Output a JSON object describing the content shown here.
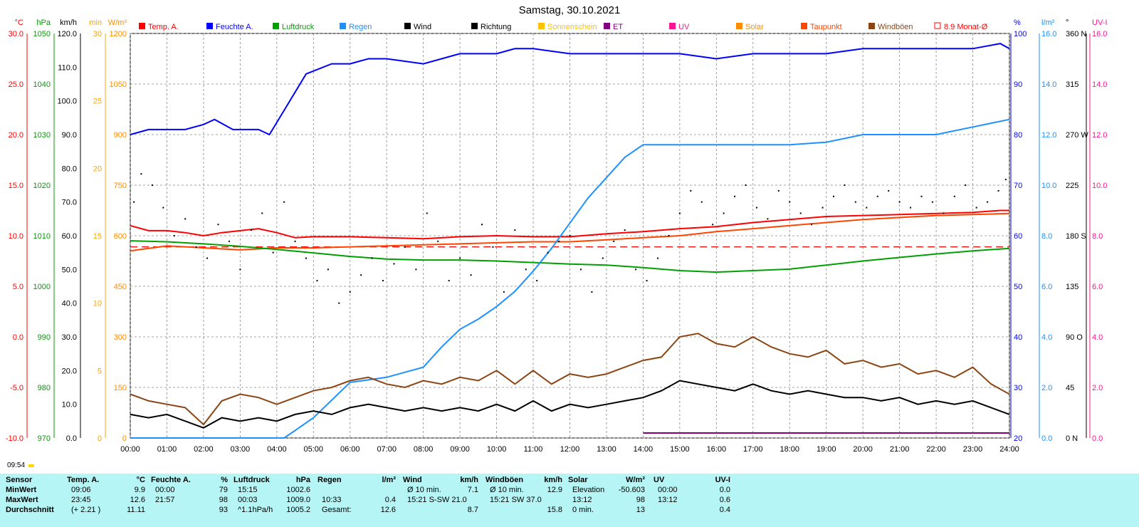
{
  "title": "Samstag, 30.10.2021",
  "sunrise_label": "09:54",
  "legend": [
    {
      "label": "Temp. A.",
      "color": "#ff0000",
      "marker": "box"
    },
    {
      "label": "Feuchte A.",
      "color": "#0000ff",
      "marker": "box"
    },
    {
      "label": "Luftdruck",
      "color": "#00a000",
      "marker": "box"
    },
    {
      "label": "Regen",
      "color": "#1e90ff",
      "marker": "box"
    },
    {
      "label": "Wind",
      "color": "#000000",
      "marker": "box"
    },
    {
      "label": "Richtung",
      "color": "#000000",
      "marker": "box"
    },
    {
      "label": "Sonnenschein",
      "color": "#ffc000",
      "marker": "box"
    },
    {
      "label": "ET",
      "color": "#800080",
      "marker": "box"
    },
    {
      "label": "UV",
      "color": "#ff1493",
      "marker": "box"
    },
    {
      "label": "Solar",
      "color": "#ff8c00",
      "marker": "box"
    },
    {
      "label": "Taupunkt",
      "color": "#ff4500",
      "marker": "box"
    },
    {
      "label": "Windböen",
      "color": "#8b4513",
      "marker": "box"
    },
    {
      "label": "8.9 Monat-Ø",
      "color": "#ff0000",
      "marker": "outline"
    }
  ],
  "left_axes": {
    "temp": {
      "unit": "°C",
      "color": "#ff0000",
      "ticks": [
        "30.0",
        "25.0",
        "20.0",
        "15.0",
        "10.0",
        "5.0",
        "0.0",
        "-5.0",
        "-10.0"
      ]
    },
    "pressure": {
      "unit": "hPa",
      "color": "#00a000",
      "ticks": [
        "1050",
        "1040",
        "1030",
        "1020",
        "1010",
        "1000",
        "990",
        "980",
        "970"
      ]
    },
    "wind": {
      "unit": "km/h",
      "color": "#000000",
      "ticks": [
        "120.0",
        "110.0",
        "100.0",
        "90.0",
        "80.0",
        "70.0",
        "60.0",
        "50.0",
        "40.0",
        "30.0",
        "20.0",
        "10.0",
        "0.0"
      ]
    },
    "sunmin": {
      "unit": "min",
      "color": "#ffa500",
      "ticks": [
        "30",
        "25",
        "20",
        "15",
        "10",
        "5",
        "0"
      ]
    },
    "solar": {
      "unit": "W/m²",
      "color": "#ff8c00",
      "ticks": [
        "1200",
        "1050",
        "900",
        "750",
        "600",
        "450",
        "300",
        "150",
        "0"
      ]
    }
  },
  "right_axes": {
    "humidity": {
      "unit": "%",
      "color": "#0000ff",
      "ticks": [
        "100",
        "90",
        "80",
        "70",
        "60",
        "50",
        "40",
        "30",
        "20"
      ]
    },
    "rain": {
      "unit": "l/m²",
      "color": "#1e90ff",
      "ticks": [
        "16.0",
        "14.0",
        "12.0",
        "10.0",
        "8.0",
        "6.0",
        "4.0",
        "2.0",
        "0.0"
      ]
    },
    "direction": {
      "unit": "°",
      "color": "#000000",
      "ticks": [
        "360 N",
        "315",
        "270 W",
        "225",
        "180 S",
        "135",
        "90 O",
        "45",
        "0 N"
      ]
    },
    "uv": {
      "unit": "UV-I",
      "color": "#ff1493",
      "ticks": [
        "16.0",
        "14.0",
        "12.0",
        "10.0",
        "8.0",
        "6.0",
        "4.0",
        "2.0",
        "0.0"
      ]
    }
  },
  "chart_data": {
    "type": "line",
    "x_labels": [
      "00:00",
      "01:00",
      "02:00",
      "03:00",
      "04:00",
      "05:00",
      "06:00",
      "07:00",
      "08:00",
      "09:00",
      "10:00",
      "11:00",
      "12:00",
      "13:00",
      "14:00",
      "15:00",
      "16:00",
      "17:00",
      "18:00",
      "19:00",
      "20:00",
      "21:00",
      "22:00",
      "23:00",
      "24:00"
    ],
    "xlim": [
      0,
      24
    ],
    "month_avg_temp": 8.9,
    "series": [
      {
        "name": "Temp. A.",
        "axis": "temp",
        "color": "#ff0000",
        "ylim": [
          -10,
          30
        ],
        "x": [
          0,
          0.5,
          1,
          1.5,
          2,
          2.5,
          3,
          3.5,
          4,
          4.5,
          5,
          6,
          7,
          8,
          9,
          10,
          11,
          12,
          13,
          14,
          15,
          16,
          17,
          18,
          19,
          20,
          21,
          22,
          23,
          23.75,
          24
        ],
        "y": [
          11.0,
          10.5,
          10.5,
          10.3,
          10.0,
          10.3,
          10.5,
          10.7,
          10.3,
          9.8,
          9.9,
          9.9,
          9.8,
          9.7,
          9.9,
          10.0,
          9.9,
          9.9,
          10.2,
          10.4,
          10.7,
          10.9,
          11.3,
          11.6,
          11.9,
          12.0,
          12.1,
          12.2,
          12.3,
          12.5,
          12.5
        ]
      },
      {
        "name": "Taupunkt",
        "axis": "temp",
        "color": "#ff4500",
        "ylim": [
          -10,
          30
        ],
        "x": [
          0,
          1,
          2,
          3,
          4,
          5,
          6,
          7,
          8,
          9,
          10,
          11,
          12,
          13,
          14,
          15,
          16,
          17,
          18,
          19,
          20,
          21,
          22,
          23,
          24
        ],
        "y": [
          8.5,
          9.0,
          8.8,
          8.6,
          8.8,
          8.8,
          8.9,
          9.0,
          9.1,
          9.2,
          9.3,
          9.4,
          9.4,
          9.6,
          9.8,
          10.0,
          10.4,
          10.7,
          11.0,
          11.3,
          11.6,
          11.8,
          12.0,
          12.1,
          12.2
        ]
      },
      {
        "name": "Feuchte A.",
        "axis": "humidity",
        "color": "#0000ff",
        "ylim": [
          20,
          100
        ],
        "x": [
          0,
          0.5,
          1,
          1.5,
          2,
          2.3,
          2.8,
          3.5,
          3.8,
          4.3,
          4.8,
          5.5,
          6,
          6.5,
          7,
          8,
          9,
          10,
          10.5,
          11,
          12,
          13,
          14,
          15,
          16,
          17,
          18,
          19,
          20,
          21,
          22,
          23,
          23.75,
          24
        ],
        "y": [
          80,
          81,
          81,
          81,
          82,
          83,
          81,
          81,
          80,
          86,
          92,
          94,
          94,
          95,
          95,
          94,
          96,
          96,
          97,
          97,
          96,
          96,
          96,
          96,
          95,
          96,
          96,
          96,
          97,
          97,
          97,
          97,
          98,
          97
        ]
      },
      {
        "name": "Luftdruck",
        "axis": "pressure",
        "color": "#00a000",
        "ylim": [
          970,
          1050
        ],
        "x": [
          0,
          1,
          2,
          3,
          4,
          5,
          6,
          7,
          8,
          9,
          10,
          11,
          12,
          13,
          14,
          15,
          16,
          17,
          18,
          19,
          20,
          21,
          22,
          23,
          24
        ],
        "y": [
          1009.0,
          1008.8,
          1008.4,
          1007.9,
          1007.3,
          1006.6,
          1005.9,
          1005.4,
          1005.2,
          1005.2,
          1005.0,
          1004.7,
          1004.4,
          1004.2,
          1003.7,
          1003.1,
          1002.8,
          1003.1,
          1003.4,
          1004.2,
          1005.0,
          1005.7,
          1006.4,
          1007.0,
          1007.5
        ]
      },
      {
        "name": "Regen",
        "axis": "rain",
        "color": "#1e90ff",
        "ylim": [
          0,
          16
        ],
        "x": [
          0,
          4.2,
          4.5,
          5,
          5.5,
          6,
          6.5,
          7,
          7.5,
          8,
          8.5,
          9,
          9.5,
          10,
          10.5,
          11,
          11.5,
          12,
          12.5,
          13,
          13.5,
          14,
          15,
          16,
          17,
          18,
          19,
          20,
          21,
          22,
          23,
          24
        ],
        "y": [
          0,
          0,
          0.3,
          0.8,
          1.5,
          2.2,
          2.3,
          2.4,
          2.6,
          2.8,
          3.6,
          4.3,
          4.7,
          5.2,
          5.8,
          6.6,
          7.5,
          8.5,
          9.5,
          10.3,
          11.1,
          11.6,
          11.6,
          11.6,
          11.6,
          11.6,
          11.7,
          12.0,
          12.0,
          12.0,
          12.3,
          12.6
        ]
      },
      {
        "name": "Wind",
        "axis": "wind",
        "color": "#000000",
        "ylim": [
          0,
          120
        ],
        "x": [
          0,
          0.5,
          1,
          1.5,
          2,
          2.5,
          3,
          3.5,
          4,
          4.5,
          5,
          5.5,
          6,
          6.5,
          7,
          7.5,
          8,
          8.5,
          9,
          9.5,
          10,
          10.5,
          11,
          11.5,
          12,
          12.5,
          13,
          13.5,
          14,
          14.5,
          15,
          15.5,
          16,
          16.5,
          17,
          17.5,
          18,
          18.5,
          19,
          19.5,
          20,
          20.5,
          21,
          21.5,
          22,
          22.5,
          23,
          23.5,
          24
        ],
        "y": [
          7,
          6,
          7,
          5,
          3,
          6,
          5,
          6,
          5,
          7,
          8,
          7,
          9,
          10,
          9,
          8,
          9,
          8,
          9,
          8,
          10,
          8,
          11,
          8,
          10,
          9,
          10,
          11,
          12,
          14,
          17,
          16,
          15,
          14,
          16,
          14,
          13,
          14,
          13,
          12,
          12,
          11,
          12,
          10,
          11,
          10,
          11,
          9,
          7
        ]
      },
      {
        "name": "Windböen",
        "axis": "wind",
        "color": "#8b4513",
        "ylim": [
          0,
          120
        ],
        "x": [
          0,
          0.5,
          1,
          1.5,
          2,
          2.5,
          3,
          3.5,
          4,
          4.5,
          5,
          5.5,
          6,
          6.5,
          7,
          7.5,
          8,
          8.5,
          9,
          9.5,
          10,
          10.5,
          11,
          11.5,
          12,
          12.5,
          13,
          13.5,
          14,
          14.5,
          15,
          15.5,
          16,
          16.5,
          17,
          17.5,
          18,
          18.5,
          19,
          19.5,
          20,
          20.5,
          21,
          21.5,
          22,
          22.5,
          23,
          23.5,
          24
        ],
        "y": [
          13,
          11,
          10,
          9,
          4,
          11,
          13,
          12,
          10,
          12,
          14,
          15,
          17,
          18,
          16,
          15,
          17,
          16,
          18,
          17,
          20,
          16,
          20,
          16,
          19,
          18,
          19,
          21,
          23,
          24,
          30,
          31,
          28,
          27,
          30,
          27,
          25,
          24,
          26,
          22,
          23,
          21,
          22,
          19,
          20,
          18,
          21,
          16,
          13
        ]
      },
      {
        "name": "Richtung",
        "axis": "direction",
        "color": "#000000",
        "ylim": [
          0,
          360
        ],
        "style": "dots",
        "x": [
          0.1,
          0.3,
          0.6,
          0.9,
          1.2,
          1.5,
          1.8,
          2.1,
          2.4,
          2.7,
          3.0,
          3.3,
          3.6,
          3.9,
          4.2,
          4.5,
          4.8,
          5.1,
          5.4,
          5.7,
          6.0,
          6.3,
          6.6,
          6.9,
          7.2,
          7.5,
          7.8,
          8.1,
          8.4,
          8.7,
          9.0,
          9.3,
          9.6,
          9.9,
          10.2,
          10.5,
          10.8,
          11.1,
          11.4,
          11.7,
          12.0,
          12.3,
          12.6,
          12.9,
          13.2,
          13.5,
          13.8,
          14.1,
          14.4,
          14.7,
          15.0,
          15.3,
          15.6,
          15.9,
          16.2,
          16.5,
          16.8,
          17.1,
          17.4,
          17.7,
          18.0,
          18.3,
          18.6,
          18.9,
          19.2,
          19.5,
          19.8,
          20.1,
          20.4,
          20.7,
          21.0,
          21.3,
          21.6,
          21.9,
          22.2,
          22.5,
          22.8,
          23.1,
          23.4,
          23.7,
          23.9
        ],
        "y": [
          210,
          235,
          225,
          205,
          180,
          195,
          170,
          160,
          190,
          175,
          150,
          185,
          200,
          165,
          210,
          175,
          160,
          140,
          150,
          120,
          130,
          145,
          160,
          140,
          155,
          170,
          150,
          200,
          175,
          140,
          160,
          145,
          190,
          170,
          130,
          185,
          150,
          140,
          165,
          175,
          180,
          150,
          130,
          160,
          175,
          185,
          150,
          140,
          160,
          180,
          200,
          220,
          210,
          190,
          200,
          215,
          225,
          205,
          195,
          220,
          210,
          200,
          190,
          205,
          215,
          225,
          210,
          205,
          215,
          220,
          210,
          205,
          215,
          210,
          200,
          215,
          225,
          205,
          210,
          220,
          230
        ]
      }
    ]
  },
  "stats": {
    "row_labels": [
      "Sensor",
      "MinWert",
      "MaxWert",
      "Durchschnitt"
    ],
    "temp": {
      "header": "Temp. A.",
      "unit": "°C",
      "rows": [
        [
          "09:06",
          "9.9"
        ],
        [
          "23:45",
          "12.6"
        ],
        [
          "(+ 2.21 )",
          "11.11"
        ]
      ]
    },
    "humidity": {
      "header": "Feuchte A.",
      "unit": "%",
      "rows": [
        [
          "00:00",
          "79"
        ],
        [
          "21:57",
          "98"
        ],
        [
          "",
          "93"
        ]
      ]
    },
    "pressure": {
      "header": "Luftdruck",
      "unit": "hPa",
      "rows": [
        [
          "15:15",
          "1002.6"
        ],
        [
          "00:03",
          "1009.0"
        ],
        [
          "^1.1hPa/h",
          "1005.2"
        ]
      ]
    },
    "rain": {
      "header": "Regen",
      "unit": "l/m²",
      "rows": [
        [
          "",
          ""
        ],
        [
          "10:33",
          "0.4"
        ],
        [
          "Gesamt:",
          "12.6"
        ]
      ]
    },
    "wind": {
      "header": "Wind",
      "unit": "km/h",
      "rows": [
        [
          "Ø 10 min.",
          "7.1"
        ],
        [
          "15:21    S-SW 21.0",
          ""
        ],
        [
          "",
          "8.7"
        ]
      ]
    },
    "gust": {
      "header": "Windböen",
      "unit": "km/h",
      "rows": [
        [
          "Ø 10 min.",
          "12.9"
        ],
        [
          "15:21      SW 37.0",
          ""
        ],
        [
          "",
          "15.8"
        ]
      ]
    },
    "solar": {
      "header": "Solar",
      "unit": "W/m²",
      "rows": [
        [
          "Elevation",
          "-50.603"
        ],
        [
          "13:12",
          "98"
        ],
        [
          "0 min.",
          "13"
        ]
      ]
    },
    "uv": {
      "header": "UV",
      "unit": "UV-I",
      "rows": [
        [
          "00:00",
          "0.0"
        ],
        [
          "13:12",
          "0.6"
        ],
        [
          "",
          "0.4"
        ]
      ]
    }
  }
}
